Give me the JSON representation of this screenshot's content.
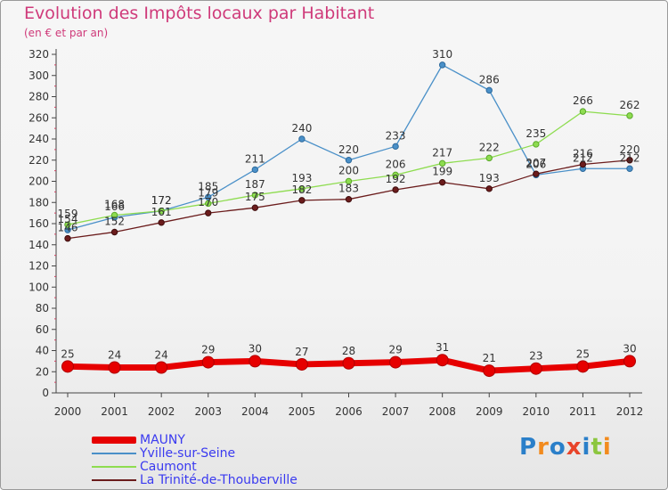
{
  "page": {
    "title": "Evolution des Impôts locaux par Habitant",
    "subtitle": "(en € et par an)"
  },
  "chart_data": {
    "type": "line",
    "title": "Evolution des Impôts locaux par Habitant",
    "subtitle": "(en € et par an)",
    "xlabel": "",
    "ylabel": "",
    "x": [
      "2000",
      "2001",
      "2002",
      "2003",
      "2004",
      "2005",
      "2006",
      "2007",
      "2008",
      "2009",
      "2010",
      "2011",
      "2012"
    ],
    "ylim": [
      0,
      320
    ],
    "yticks": [
      0,
      20,
      40,
      60,
      80,
      100,
      120,
      140,
      160,
      180,
      200,
      220,
      240,
      260,
      280,
      300,
      320
    ],
    "grid": false,
    "legend_position": "bottom-left",
    "series": [
      {
        "name": "MAUNY",
        "color": "#e60000",
        "values": [
          25,
          24,
          24,
          29,
          30,
          27,
          28,
          29,
          31,
          21,
          23,
          25,
          30
        ]
      },
      {
        "name": "Yville-sur-Seine",
        "color": "#4a90c8",
        "values": [
          154,
          166,
          172,
          185,
          211,
          240,
          220,
          233,
          310,
          286,
          206,
          212,
          212
        ]
      },
      {
        "name": "Caumont",
        "color": "#8edc50",
        "values": [
          159,
          168,
          172,
          179,
          187,
          193,
          200,
          206,
          217,
          222,
          235,
          266,
          262
        ]
      },
      {
        "name": "La Trinité-de-Thouberville",
        "color": "#6b1c1c",
        "values": [
          146,
          152,
          161,
          170,
          175,
          182,
          183,
          192,
          199,
          193,
          207,
          216,
          220
        ]
      }
    ]
  },
  "logo": {
    "text": "Proxiti",
    "letters": [
      "P",
      "r",
      "o",
      "x",
      "i",
      "t",
      "i"
    ],
    "colors": [
      "#2a7fc9",
      "#f28b1e",
      "#2a7fc9",
      "#e8442a",
      "#2a7fc9",
      "#8cc63f",
      "#f28b1e"
    ]
  }
}
